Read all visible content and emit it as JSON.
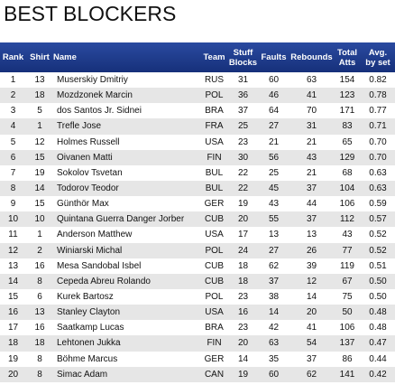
{
  "page": {
    "title": "BEST BLOCKERS"
  },
  "columns": {
    "rank": "Rank",
    "shirt": "Shirt",
    "name": "Name",
    "team": "Team",
    "stuff_blocks_line1": "Stuff",
    "stuff_blocks_line2": "Blocks",
    "faults": "Faults",
    "rebounds": "Rebounds",
    "total_atts_line1": "Total",
    "total_atts_line2": "Atts",
    "avg_line1": "Avg.",
    "avg_line2": "by set"
  },
  "rows": [
    {
      "rank": "1",
      "shirt": "13",
      "name": "Muserskiy Dmitriy",
      "team": "RUS",
      "stuff": "31",
      "faults": "60",
      "rebounds": "63",
      "total": "154",
      "avg": "0.82"
    },
    {
      "rank": "2",
      "shirt": "18",
      "name": "Mozdzonek Marcin",
      "team": "POL",
      "stuff": "36",
      "faults": "46",
      "rebounds": "41",
      "total": "123",
      "avg": "0.78"
    },
    {
      "rank": "3",
      "shirt": "5",
      "name": "dos Santos Jr. Sidnei",
      "team": "BRA",
      "stuff": "37",
      "faults": "64",
      "rebounds": "70",
      "total": "171",
      "avg": "0.77"
    },
    {
      "rank": "4",
      "shirt": "1",
      "name": "Trefle Jose",
      "team": "FRA",
      "stuff": "25",
      "faults": "27",
      "rebounds": "31",
      "total": "83",
      "avg": "0.71"
    },
    {
      "rank": "5",
      "shirt": "12",
      "name": "Holmes Russell",
      "team": "USA",
      "stuff": "23",
      "faults": "21",
      "rebounds": "21",
      "total": "65",
      "avg": "0.70"
    },
    {
      "rank": "6",
      "shirt": "15",
      "name": "Oivanen Matti",
      "team": "FIN",
      "stuff": "30",
      "faults": "56",
      "rebounds": "43",
      "total": "129",
      "avg": "0.70"
    },
    {
      "rank": "7",
      "shirt": "19",
      "name": "Sokolov Tsvetan",
      "team": "BUL",
      "stuff": "22",
      "faults": "25",
      "rebounds": "21",
      "total": "68",
      "avg": "0.63"
    },
    {
      "rank": "8",
      "shirt": "14",
      "name": "Todorov Teodor",
      "team": "BUL",
      "stuff": "22",
      "faults": "45",
      "rebounds": "37",
      "total": "104",
      "avg": "0.63"
    },
    {
      "rank": "9",
      "shirt": "15",
      "name": "Günthör Max",
      "team": "GER",
      "stuff": "19",
      "faults": "43",
      "rebounds": "44",
      "total": "106",
      "avg": "0.59"
    },
    {
      "rank": "10",
      "shirt": "10",
      "name": "Quintana Guerra Danger Jorber",
      "team": "CUB",
      "stuff": "20",
      "faults": "55",
      "rebounds": "37",
      "total": "112",
      "avg": "0.57"
    },
    {
      "rank": "11",
      "shirt": "1",
      "name": "Anderson Matthew",
      "team": "USA",
      "stuff": "17",
      "faults": "13",
      "rebounds": "13",
      "total": "43",
      "avg": "0.52"
    },
    {
      "rank": "12",
      "shirt": "2",
      "name": "Winiarski Michal",
      "team": "POL",
      "stuff": "24",
      "faults": "27",
      "rebounds": "26",
      "total": "77",
      "avg": "0.52"
    },
    {
      "rank": "13",
      "shirt": "16",
      "name": "Mesa Sandobal Isbel",
      "team": "CUB",
      "stuff": "18",
      "faults": "62",
      "rebounds": "39",
      "total": "119",
      "avg": "0.51"
    },
    {
      "rank": "14",
      "shirt": "8",
      "name": "Cepeda Abreu Rolando",
      "team": "CUB",
      "stuff": "18",
      "faults": "37",
      "rebounds": "12",
      "total": "67",
      "avg": "0.50"
    },
    {
      "rank": "15",
      "shirt": "6",
      "name": "Kurek Bartosz",
      "team": "POL",
      "stuff": "23",
      "faults": "38",
      "rebounds": "14",
      "total": "75",
      "avg": "0.50"
    },
    {
      "rank": "16",
      "shirt": "13",
      "name": "Stanley Clayton",
      "team": "USA",
      "stuff": "16",
      "faults": "14",
      "rebounds": "20",
      "total": "50",
      "avg": "0.48"
    },
    {
      "rank": "17",
      "shirt": "16",
      "name": "Saatkamp Lucas",
      "team": "BRA",
      "stuff": "23",
      "faults": "42",
      "rebounds": "41",
      "total": "106",
      "avg": "0.48"
    },
    {
      "rank": "18",
      "shirt": "18",
      "name": "Lehtonen Jukka",
      "team": "FIN",
      "stuff": "20",
      "faults": "63",
      "rebounds": "54",
      "total": "137",
      "avg": "0.47"
    },
    {
      "rank": "19",
      "shirt": "8",
      "name": "Böhme Marcus",
      "team": "GER",
      "stuff": "14",
      "faults": "35",
      "rebounds": "37",
      "total": "86",
      "avg": "0.44"
    },
    {
      "rank": "20",
      "shirt": "8",
      "name": "Simac Adam",
      "team": "CAN",
      "stuff": "19",
      "faults": "60",
      "rebounds": "62",
      "total": "141",
      "avg": "0.42"
    }
  ]
}
